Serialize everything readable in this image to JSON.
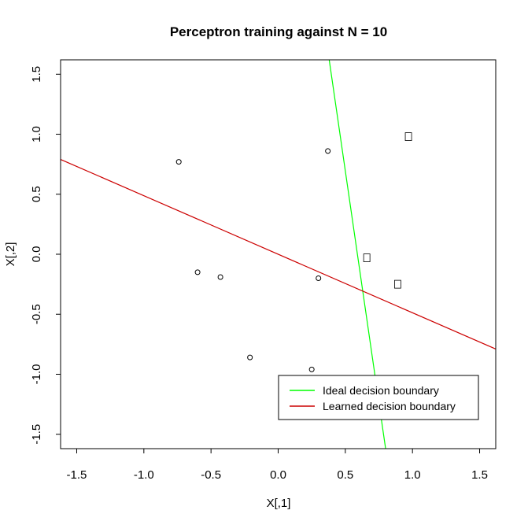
{
  "chart_data": {
    "type": "scatter",
    "title": "Perceptron training against N =  10",
    "xlabel": "X[,1]",
    "ylabel": "X[,2]",
    "xlim": [
      -1.62,
      1.62
    ],
    "ylim": [
      -1.62,
      1.62
    ],
    "x_ticks": [
      "-1.5",
      "-1.0",
      "-0.5",
      "0.0",
      "0.5",
      "1.0",
      "1.5"
    ],
    "y_ticks": [
      "-1.5",
      "-1.0",
      "-0.5",
      "0.0",
      "0.5",
      "1.0",
      "1.5"
    ],
    "grid": false,
    "legend_position": "bottom-right",
    "series": [
      {
        "marker": "circle",
        "points": [
          {
            "x": -0.74,
            "y": 0.77
          },
          {
            "x": 0.37,
            "y": 0.86
          },
          {
            "x": -0.6,
            "y": -0.15
          },
          {
            "x": -0.43,
            "y": -0.19
          },
          {
            "x": 0.3,
            "y": -0.2
          },
          {
            "x": -0.21,
            "y": -0.86
          },
          {
            "x": 0.25,
            "y": -0.96
          }
        ]
      },
      {
        "marker": "box",
        "points": [
          {
            "x": 0.97,
            "y": 0.98
          },
          {
            "x": 0.66,
            "y": -0.03
          },
          {
            "x": 0.89,
            "y": -0.25
          }
        ]
      }
    ],
    "lines": [
      {
        "name": "Ideal decision boundary",
        "color": "#00ff00",
        "x": [
          0.38,
          0.8
        ],
        "y": [
          1.62,
          -1.62
        ]
      },
      {
        "name": "Learned decision boundary",
        "color": "#cc0000",
        "x": [
          -1.62,
          1.62
        ],
        "y": [
          0.79,
          -0.79
        ]
      }
    ]
  }
}
